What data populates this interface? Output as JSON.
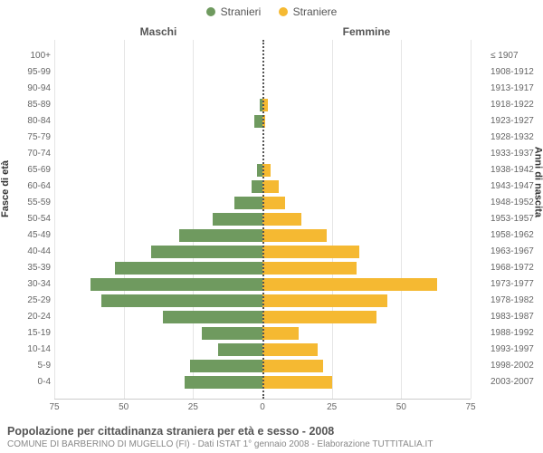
{
  "legend": {
    "male": {
      "label": "Stranieri",
      "color": "#6f9a5f"
    },
    "female": {
      "label": "Straniere",
      "color": "#f5b932"
    }
  },
  "headers": {
    "left": "Maschi",
    "right": "Femmine"
  },
  "axes": {
    "left_title": "Fasce di età",
    "right_title": "Anni di nascita",
    "xlim": 75,
    "xticks": [
      75,
      50,
      25,
      0,
      25,
      50,
      75
    ]
  },
  "colors": {
    "male_bar": "#6f9a5f",
    "female_bar": "#f5b932",
    "grid": "#e5e5e5",
    "center_dotted": "#555555",
    "background": "#ffffff"
  },
  "chart": {
    "type": "population-pyramid",
    "rows": [
      {
        "age": "100+",
        "birth": "≤ 1907",
        "m": 0,
        "f": 0
      },
      {
        "age": "95-99",
        "birth": "1908-1912",
        "m": 0,
        "f": 0
      },
      {
        "age": "90-94",
        "birth": "1913-1917",
        "m": 0,
        "f": 0
      },
      {
        "age": "85-89",
        "birth": "1918-1922",
        "m": 1,
        "f": 2
      },
      {
        "age": "80-84",
        "birth": "1923-1927",
        "m": 3,
        "f": 1
      },
      {
        "age": "75-79",
        "birth": "1928-1932",
        "m": 0,
        "f": 0
      },
      {
        "age": "70-74",
        "birth": "1933-1937",
        "m": 0,
        "f": 0
      },
      {
        "age": "65-69",
        "birth": "1938-1942",
        "m": 2,
        "f": 3
      },
      {
        "age": "60-64",
        "birth": "1943-1947",
        "m": 4,
        "f": 6
      },
      {
        "age": "55-59",
        "birth": "1948-1952",
        "m": 10,
        "f": 8
      },
      {
        "age": "50-54",
        "birth": "1953-1957",
        "m": 18,
        "f": 14
      },
      {
        "age": "45-49",
        "birth": "1958-1962",
        "m": 30,
        "f": 23
      },
      {
        "age": "40-44",
        "birth": "1963-1967",
        "m": 40,
        "f": 35
      },
      {
        "age": "35-39",
        "birth": "1968-1972",
        "m": 53,
        "f": 34
      },
      {
        "age": "30-34",
        "birth": "1973-1977",
        "m": 62,
        "f": 63
      },
      {
        "age": "25-29",
        "birth": "1978-1982",
        "m": 58,
        "f": 45
      },
      {
        "age": "20-24",
        "birth": "1983-1987",
        "m": 36,
        "f": 41
      },
      {
        "age": "15-19",
        "birth": "1988-1992",
        "m": 22,
        "f": 13
      },
      {
        "age": "10-14",
        "birth": "1993-1997",
        "m": 16,
        "f": 20
      },
      {
        "age": "5-9",
        "birth": "1998-2002",
        "m": 26,
        "f": 22
      },
      {
        "age": "0-4",
        "birth": "2003-2007",
        "m": 28,
        "f": 25
      }
    ]
  },
  "footer": {
    "title": "Popolazione per cittadinanza straniera per età e sesso - 2008",
    "subtitle": "COMUNE DI BARBERINO DI MUGELLO (FI) - Dati ISTAT 1° gennaio 2008 - Elaborazione TUTTITALIA.IT"
  }
}
